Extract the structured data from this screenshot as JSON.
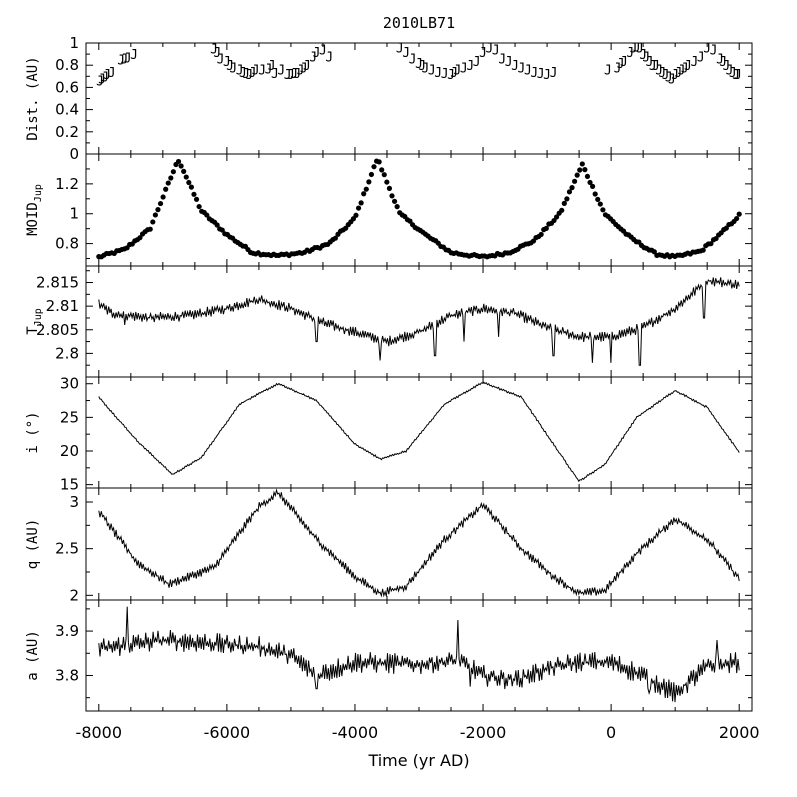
{
  "chart_data": {
    "type": "line",
    "title": "2010LB71",
    "xlabel": "Time (yr AD)",
    "xlim": [
      -8200,
      2200
    ],
    "xticks": [
      -8000,
      -6000,
      -4000,
      -2000,
      0,
      2000
    ],
    "panels": [
      {
        "key": "dist",
        "ylabel": "Dist. (AU)",
        "style": "glyph",
        "glyph": "J",
        "ylim": [
          0,
          1
        ],
        "yticks": [
          0,
          0.2,
          0.4,
          0.6,
          0.8,
          1
        ],
        "x": [
          -7980,
          -7950,
          -7900,
          -7870,
          -7800,
          -7650,
          -7600,
          -7550,
          -7450,
          -6200,
          -6150,
          -6100,
          -6000,
          -5950,
          -5900,
          -5800,
          -5750,
          -5700,
          -5650,
          -5600,
          -5550,
          -5450,
          -5350,
          -5300,
          -5250,
          -5150,
          -5050,
          -5000,
          -4950,
          -4900,
          -4850,
          -4800,
          -4750,
          -4650,
          -4600,
          -4500,
          -4400,
          -3300,
          -3200,
          -3100,
          -3000,
          -2950,
          -2900,
          -2800,
          -2700,
          -2600,
          -2500,
          -2450,
          -2400,
          -2300,
          -2200,
          -2100,
          -2000,
          -1900,
          -1800,
          -1700,
          -1600,
          -1500,
          -1400,
          -1300,
          -1200,
          -1100,
          -1000,
          -900,
          -50,
          100,
          150,
          200,
          300,
          350,
          400,
          450,
          500,
          550,
          600,
          650,
          700,
          750,
          800,
          850,
          900,
          950,
          1000,
          1050,
          1100,
          1150,
          1200,
          1300,
          1400,
          1500,
          1600,
          1700,
          1750,
          1800,
          1850,
          1900,
          1950,
          1980
        ],
        "y": [
          0.66,
          0.68,
          0.7,
          0.72,
          0.74,
          0.85,
          0.86,
          0.87,
          0.9,
          0.95,
          0.92,
          0.86,
          0.84,
          0.8,
          0.78,
          0.76,
          0.74,
          0.73,
          0.72,
          0.74,
          0.76,
          0.76,
          0.77,
          0.8,
          0.73,
          0.76,
          0.72,
          0.72,
          0.73,
          0.73,
          0.76,
          0.78,
          0.8,
          0.88,
          0.92,
          0.94,
          0.88,
          0.96,
          0.92,
          0.86,
          0.82,
          0.8,
          0.78,
          0.76,
          0.74,
          0.73,
          0.72,
          0.74,
          0.76,
          0.78,
          0.8,
          0.84,
          0.92,
          0.96,
          0.94,
          0.86,
          0.84,
          0.8,
          0.78,
          0.76,
          0.74,
          0.73,
          0.72,
          0.74,
          0.76,
          0.78,
          0.82,
          0.84,
          0.92,
          0.96,
          0.97,
          0.96,
          0.9,
          0.88,
          0.84,
          0.8,
          0.8,
          0.76,
          0.74,
          0.72,
          0.7,
          0.68,
          0.72,
          0.74,
          0.76,
          0.78,
          0.8,
          0.84,
          0.88,
          0.96,
          0.94,
          0.86,
          0.84,
          0.8,
          0.76,
          0.74,
          0.72,
          0.72
        ]
      },
      {
        "key": "moid",
        "ylabel": "MOID",
        "ylabel_sub": "Jup",
        "style": "points",
        "ylim": [
          0.65,
          1.4
        ],
        "yticks": [
          0.8,
          1,
          1.2
        ],
        "anchors_x": [
          -8000,
          -7600,
          -7200,
          -6800,
          -6750,
          -6400,
          -6000,
          -5600,
          -5200,
          -4800,
          -4400,
          -4000,
          -3650,
          -3300,
          -2900,
          -2500,
          -2000,
          -1600,
          -1200,
          -800,
          -450,
          -100,
          300,
          700,
          1000,
          1400,
          1700,
          2000
        ],
        "anchors_y": [
          0.71,
          0.76,
          0.9,
          1.32,
          1.36,
          1.02,
          0.86,
          0.74,
          0.72,
          0.74,
          0.8,
          0.97,
          1.37,
          1.0,
          0.86,
          0.74,
          0.71,
          0.74,
          0.82,
          1.0,
          1.33,
          1.0,
          0.84,
          0.73,
          0.71,
          0.75,
          0.86,
          0.99
        ],
        "count": 250
      },
      {
        "key": "tjup",
        "ylabel": "T",
        "ylabel_sub": "Jup",
        "style": "line",
        "ylim": [
          2.795,
          2.8185
        ],
        "yticks": [
          2.8,
          2.805,
          2.81,
          2.815
        ],
        "anchors_x": [
          -8000,
          -7800,
          -7200,
          -6600,
          -6000,
          -5500,
          -5000,
          -4500,
          -4000,
          -3500,
          -3000,
          -2500,
          -2000,
          -1500,
          -1000,
          -500,
          0,
          500,
          1000,
          1500,
          2000
        ],
        "anchors_y": [
          2.8105,
          2.8085,
          2.8075,
          2.808,
          2.8095,
          2.8115,
          2.8095,
          2.8065,
          2.8045,
          2.8025,
          2.8045,
          2.808,
          2.8095,
          2.8085,
          2.8055,
          2.8035,
          2.8035,
          2.8055,
          2.8095,
          2.8155,
          2.8145
        ],
        "spikes": [
          [
            -7600,
            2.806
          ],
          [
            -4600,
            2.8025
          ],
          [
            -3600,
            2.7985
          ],
          [
            -2750,
            2.7995
          ],
          [
            -2300,
            2.8025
          ],
          [
            -1750,
            2.8035
          ],
          [
            -900,
            2.7995
          ],
          [
            -300,
            2.798
          ],
          [
            0,
            2.798
          ],
          [
            450,
            2.7975
          ],
          [
            1450,
            2.8075
          ]
        ]
      },
      {
        "key": "incl",
        "ylabel": "i (°)",
        "style": "line",
        "ylim": [
          14.5,
          31.0
        ],
        "yticks": [
          15,
          20,
          25,
          30
        ],
        "anchors_x": [
          -8000,
          -7400,
          -6850,
          -6400,
          -5800,
          -5200,
          -4600,
          -4000,
          -3600,
          -3200,
          -2600,
          -2000,
          -1400,
          -900,
          -500,
          -100,
          400,
          1000,
          1500,
          2000
        ],
        "anchors_y": [
          28.0,
          21.5,
          16.5,
          19.0,
          27.0,
          30.0,
          27.5,
          21.0,
          18.8,
          20.0,
          27.0,
          30.2,
          28.0,
          21.0,
          15.5,
          18.0,
          25.0,
          29.0,
          26.5,
          19.8
        ]
      },
      {
        "key": "q",
        "ylabel": "q (AU)",
        "style": "line",
        "ylim": [
          1.95,
          3.15
        ],
        "yticks": [
          2,
          2.5,
          3
        ],
        "anchors_x": [
          -8000,
          -7400,
          -6900,
          -6200,
          -5500,
          -5200,
          -4600,
          -4000,
          -3600,
          -3200,
          -2600,
          -2000,
          -1400,
          -900,
          -500,
          -100,
          400,
          1000,
          1500,
          2000
        ],
        "anchors_y": [
          2.9,
          2.35,
          2.12,
          2.3,
          2.95,
          3.1,
          2.6,
          2.2,
          2.02,
          2.1,
          2.6,
          2.97,
          2.5,
          2.2,
          2.02,
          2.05,
          2.45,
          2.82,
          2.6,
          2.18
        ]
      },
      {
        "key": "a",
        "ylabel": "a (AU)",
        "style": "line",
        "ylim": [
          3.72,
          3.97
        ],
        "yticks": [
          3.8,
          3.9
        ],
        "anchors_x": [
          -8000,
          -7000,
          -6000,
          -5500,
          -5000,
          -4600,
          -4000,
          -3000,
          -2400,
          -2000,
          -1500,
          -1000,
          -500,
          0,
          500,
          1000,
          1500,
          2000
        ],
        "anchors_y": [
          3.86,
          3.88,
          3.87,
          3.865,
          3.845,
          3.8,
          3.83,
          3.825,
          3.835,
          3.8,
          3.79,
          3.815,
          3.83,
          3.83,
          3.8,
          3.76,
          3.82,
          3.83
        ],
        "spikes": [
          [
            -7550,
            3.955
          ],
          [
            -4600,
            3.77
          ],
          [
            -2400,
            3.925
          ],
          [
            -2200,
            3.775
          ],
          [
            600,
            3.76
          ],
          [
            1000,
            3.74
          ],
          [
            1650,
            3.88
          ]
        ]
      }
    ]
  }
}
